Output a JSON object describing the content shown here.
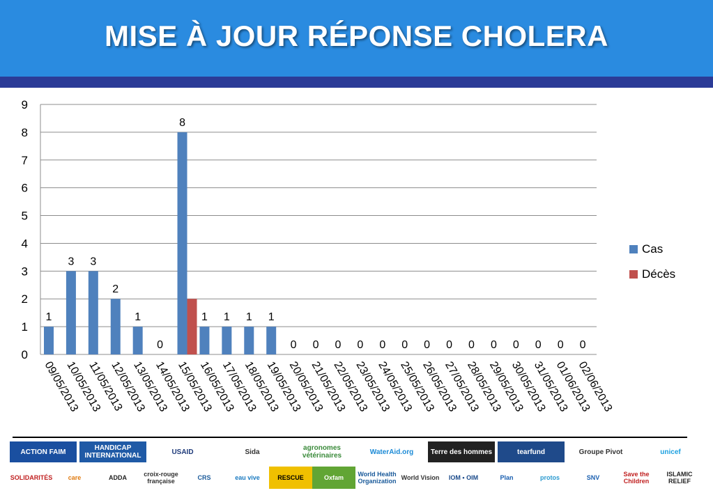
{
  "header": {
    "title": "MISE À JOUR RÉPONSE CHOLERA"
  },
  "colors": {
    "header": "#2a8be0",
    "header_bar": "#2b3b97",
    "cas": "#4f81bd",
    "deces": "#c0504d"
  },
  "chart_data": {
    "type": "bar",
    "categories": [
      "09/05/2013",
      "10/05/2013",
      "11/05/2013",
      "12/05/2013",
      "13/05/2013",
      "14/05/2013",
      "15/05/2013",
      "16/05/2013",
      "17/05/2013",
      "18/05/2013",
      "19/05/2013",
      "20/05/2013",
      "21/05/2013",
      "22/05/2013",
      "23/05/2013",
      "24/05/2013",
      "25/05/2013",
      "26/05/2013",
      "27/05/2013",
      "28/05/2013",
      "29/05/2013",
      "30/05/2013",
      "31/05/2013",
      "01/06/2013",
      "02/06/2013"
    ],
    "series": [
      {
        "name": "Cas",
        "values": [
          1,
          3,
          3,
          2,
          1,
          null,
          8,
          1,
          1,
          1,
          1,
          null,
          null,
          null,
          null,
          null,
          null,
          null,
          null,
          null,
          null,
          null,
          null,
          null,
          null
        ]
      },
      {
        "name": "Décès",
        "values": [
          null,
          null,
          null,
          null,
          null,
          null,
          2,
          null,
          null,
          null,
          null,
          null,
          null,
          null,
          null,
          null,
          null,
          null,
          null,
          null,
          null,
          null,
          null,
          null,
          null
        ]
      }
    ],
    "data_labels": [
      "1",
      "3",
      "3",
      "2",
      "1",
      "0",
      "8",
      "1",
      "1",
      "1",
      "1",
      "0",
      "0",
      "0",
      "0",
      "0",
      "0",
      "0",
      "0",
      "0",
      "0",
      "0",
      "0",
      "0",
      "0"
    ],
    "ylim": [
      0,
      9
    ],
    "yticks": [
      0,
      1,
      2,
      3,
      4,
      5,
      6,
      7,
      8,
      9
    ],
    "grid": true,
    "legend_position": "right"
  },
  "legend": {
    "items": [
      "Cas",
      "Décès"
    ]
  },
  "footer": {
    "logos": [
      {
        "name": "action-faim-logo",
        "text": "ACTION FAIM",
        "bg": "#1a4fa0",
        "fg": "#ffffff"
      },
      {
        "name": "handicap-international-logo",
        "text": "HANDICAP INTERNATIONAL",
        "bg": "#1f5aa6",
        "fg": "#ffffff"
      },
      {
        "name": "usaid-logo",
        "text": "USAID",
        "bg": "#ffffff",
        "fg": "#1e3a7a"
      },
      {
        "name": "sida-logo",
        "text": "Sida",
        "bg": "#ffffff",
        "fg": "#333333"
      },
      {
        "name": "agronomes-veterinaires-logo",
        "text": "agronomes vétérinaires",
        "bg": "#ffffff",
        "fg": "#3a8a3a"
      },
      {
        "name": "wateraid-logo",
        "text": "WaterAid.org",
        "bg": "#ffffff",
        "fg": "#1b8ad6"
      },
      {
        "name": "terre-des-hommes-logo",
        "text": "Terre des hommes",
        "bg": "#222222",
        "fg": "#ffffff"
      },
      {
        "name": "tearfund-logo",
        "text": "tearfund",
        "bg": "#1f4a8a",
        "fg": "#ffffff"
      },
      {
        "name": "groupe-pivot-logo",
        "text": "Groupe Pivot",
        "bg": "#ffffff",
        "fg": "#333333"
      },
      {
        "name": "unicef-logo",
        "text": "unicef",
        "bg": "#ffffff",
        "fg": "#1ca0e0"
      },
      {
        "name": "solidarites-logo",
        "text": "SOLIDARITÉS",
        "bg": "#ffffff",
        "fg": "#c02020"
      },
      {
        "name": "care-logo",
        "text": "care",
        "bg": "#ffffff",
        "fg": "#e07a10"
      },
      {
        "name": "adda-logo",
        "text": "ADDA",
        "bg": "#ffffff",
        "fg": "#222222"
      },
      {
        "name": "croix-rouge-logo",
        "text": "croix-rouge française",
        "bg": "#ffffff",
        "fg": "#333333"
      },
      {
        "name": "crs-logo",
        "text": "CRS",
        "bg": "#ffffff",
        "fg": "#1a5a9a"
      },
      {
        "name": "eau-vive-logo",
        "text": "eau vive",
        "bg": "#ffffff",
        "fg": "#1a7ac0"
      },
      {
        "name": "irc-logo",
        "text": "RESCUE",
        "bg": "#f0c000",
        "fg": "#000000"
      },
      {
        "name": "oxfam-logo",
        "text": "Oxfam",
        "bg": "#61a534",
        "fg": "#ffffff"
      },
      {
        "name": "who-logo",
        "text": "World Health Organization",
        "bg": "#ffffff",
        "fg": "#1a5a9a"
      },
      {
        "name": "world-vision-logo",
        "text": "World Vision",
        "bg": "#ffffff",
        "fg": "#333333"
      },
      {
        "name": "iom-logo",
        "text": "IOM • OIM",
        "bg": "#ffffff",
        "fg": "#1a4a8a"
      },
      {
        "name": "plan-logo",
        "text": "Plan",
        "bg": "#ffffff",
        "fg": "#1a5fb0"
      },
      {
        "name": "protos-logo",
        "text": "protos",
        "bg": "#ffffff",
        "fg": "#2a9ad0"
      },
      {
        "name": "snv-logo",
        "text": "SNV",
        "bg": "#ffffff",
        "fg": "#1a5fb0"
      },
      {
        "name": "save-the-children-logo",
        "text": "Save the Children",
        "bg": "#ffffff",
        "fg": "#c02020"
      },
      {
        "name": "islamic-relief-logo",
        "text": "ISLAMIC RELIEF",
        "bg": "#ffffff",
        "fg": "#222222"
      }
    ]
  }
}
